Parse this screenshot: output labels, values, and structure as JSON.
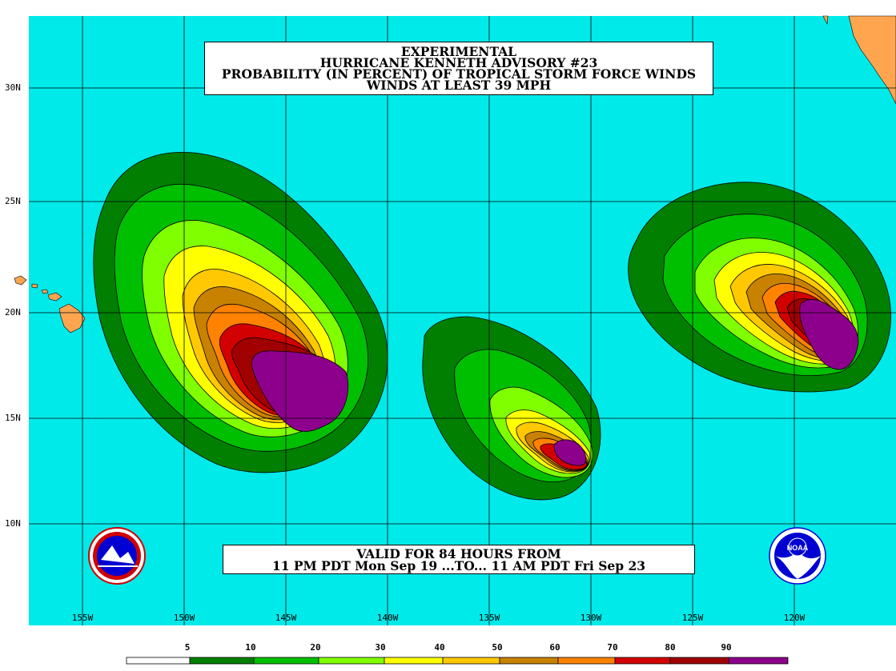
{
  "title": {
    "line1": "EXPERIMENTAL",
    "line2": "HURRICANE KENNETH ADVISORY #23",
    "line3": "PROBABILITY (IN PERCENT) OF TROPICAL STORM FORCE WINDS",
    "line4": "WINDS AT LEAST 39 MPH"
  },
  "valid": {
    "line1": "VALID FOR 84 HOURS FROM",
    "line2": "11 PM PDT Mon Sep 19 ...TO... 11 AM PDT Fri Sep 23"
  },
  "latitude_labels": [
    "30N",
    "25N",
    "20N",
    "15N",
    "10N"
  ],
  "longitude_labels": [
    "155W",
    "150W",
    "145W",
    "140W",
    "135W",
    "130W",
    "125W",
    "120W"
  ],
  "scale": {
    "labels": [
      "5",
      "10",
      "20",
      "30",
      "40",
      "50",
      "60",
      "70",
      "80",
      "90"
    ],
    "colors": [
      "#ffffff",
      "#007f00",
      "#00bf00",
      "#80ff00",
      "#ffff00",
      "#ffc800",
      "#c88200",
      "#ff8200",
      "#d20000",
      "#a00000",
      "#8c008c"
    ]
  },
  "colors": {
    "ocean": "#00eaea",
    "land": "#ffa550",
    "grid": "#000000"
  },
  "logos": {
    "left": "nws-logo",
    "right": "noaa-logo"
  }
}
